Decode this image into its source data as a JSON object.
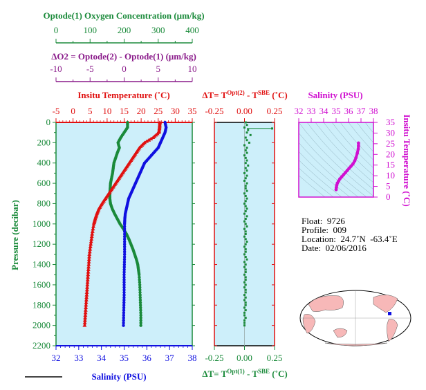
{
  "colors": {
    "oxygen": "#1a8a3a",
    "delta_o2": "#8a1a8a",
    "temperature": "#e01010",
    "salinity": "#1010e0",
    "pressure": "#1a8a3a",
    "delta_t": "#e01010",
    "panel_bg": "#cdeffa",
    "magenta": "#d010d0"
  },
  "chart_data": [
    {
      "type": "line",
      "panel": "main-profile",
      "y_axis": {
        "label": "Pressure (decibar)",
        "range": [
          0,
          2200
        ],
        "ticks": [
          0,
          200,
          400,
          600,
          800,
          1000,
          1200,
          1400,
          1600,
          1800,
          2000,
          2200
        ],
        "inverted": true
      },
      "x_axes": [
        {
          "label": "Optode(1) Oxygen Concentration (μm/kg)",
          "range": [
            0,
            400
          ],
          "ticks": [
            0,
            100,
            200,
            300,
            400
          ]
        },
        {
          "label": "ΔO2 = Optode(2) - Optode(1)   (μm/kg)",
          "range": [
            -10,
            10
          ],
          "ticks": [
            -10,
            -5,
            0,
            5,
            10
          ]
        },
        {
          "label": "Insitu Temperature (˚C)",
          "range": [
            -5,
            35
          ],
          "ticks": [
            -5,
            0,
            5,
            10,
            15,
            20,
            25,
            30,
            35
          ]
        },
        {
          "label": "Salinity (PSU)",
          "range": [
            32,
            38
          ],
          "ticks": [
            32,
            33,
            34,
            35,
            36,
            37,
            38
          ]
        }
      ],
      "series": [
        {
          "variable": "oxygen",
          "pressure": [
            0,
            50,
            100,
            150,
            200,
            250,
            300,
            350,
            400,
            450,
            500,
            550,
            600,
            650,
            700,
            750,
            800,
            850,
            900,
            950,
            1000,
            1050,
            1100,
            1150,
            1200,
            1250,
            1300,
            1350,
            1400,
            1450,
            1500,
            1600,
            1700,
            1800,
            1900,
            2000
          ],
          "values": [
            210,
            210,
            200,
            190,
            182,
            186,
            180,
            175,
            170,
            168,
            166,
            163,
            160,
            159,
            158,
            158,
            160,
            165,
            172,
            180,
            188,
            198,
            207,
            214,
            220,
            226,
            231,
            236,
            240,
            242,
            244,
            246,
            247,
            248,
            249,
            249
          ]
        },
        {
          "variable": "temperature",
          "pressure": [
            0,
            50,
            100,
            150,
            200,
            250,
            300,
            350,
            400,
            450,
            500,
            550,
            600,
            650,
            700,
            750,
            800,
            850,
            900,
            950,
            1000,
            1100,
            1200,
            1300,
            1400,
            1500,
            1600,
            1700,
            1800,
            1900,
            2000
          ],
          "values": [
            25.5,
            25.4,
            25.2,
            23.5,
            21.0,
            19.5,
            18.5,
            17.5,
            16.5,
            15.5,
            14.5,
            13.5,
            12.5,
            11.5,
            10.5,
            9.5,
            8.5,
            7.6,
            7.0,
            6.5,
            6.1,
            5.6,
            5.2,
            4.8,
            4.6,
            4.4,
            4.2,
            4.0,
            3.8,
            3.6,
            3.4
          ]
        },
        {
          "variable": "salinity",
          "pressure": [
            0,
            50,
            100,
            150,
            200,
            250,
            300,
            350,
            400,
            450,
            500,
            550,
            600,
            650,
            700,
            750,
            800,
            850,
            900,
            950,
            1000,
            1100,
            1200,
            1300,
            1400,
            1500,
            1600,
            1700,
            1800,
            1900,
            2000
          ],
          "values": [
            36.8,
            36.85,
            36.8,
            36.7,
            36.6,
            36.5,
            36.3,
            36.1,
            35.9,
            35.8,
            35.7,
            35.6,
            35.5,
            35.4,
            35.3,
            35.2,
            35.15,
            35.1,
            35.05,
            35.03,
            35.02,
            35.02,
            35.02,
            35.02,
            35.01,
            35.0,
            35.0,
            35.0,
            34.99,
            34.98,
            34.97
          ]
        }
      ]
    },
    {
      "type": "scatter",
      "panel": "delta-t",
      "y_axis": {
        "label": "Pressure (decibar)",
        "range": [
          0,
          2200
        ],
        "inverted": true
      },
      "x_axis_top": {
        "label_parts": [
          "ΔT= T",
          "Opt(2)",
          " - T",
          "SBE",
          " (˚C)"
        ],
        "range": [
          -0.25,
          0.25
        ],
        "ticks": [
          -0.25,
          0.0,
          0.25
        ],
        "tick_labels": [
          "-0.25",
          "0.00",
          "0.25"
        ]
      },
      "x_axis_bottom": {
        "label_parts": [
          "ΔT= T",
          "Opt(1)",
          " - T",
          "SBE",
          " (˚C)"
        ],
        "range": [
          -0.25,
          0.25
        ],
        "ticks": [
          -0.25,
          0.0,
          0.25
        ],
        "tick_labels": [
          "-0.25",
          "0.00",
          "0.25"
        ]
      },
      "pressure": [
        0,
        25,
        50,
        75,
        100,
        125,
        150,
        175,
        200,
        225,
        250,
        275,
        300,
        325,
        350,
        375,
        400,
        425,
        450,
        475,
        500,
        525,
        550,
        575,
        600,
        625,
        650,
        675,
        700,
        725,
        750,
        775,
        800,
        825,
        850,
        875,
        900,
        925,
        950,
        975,
        1000,
        1025,
        1050,
        1075,
        1100,
        1125,
        1150,
        1175,
        1200,
        1225,
        1250,
        1275,
        1300,
        1325,
        1350,
        1375,
        1400,
        1425,
        1450,
        1475,
        1500,
        1525,
        1550,
        1575,
        1600,
        1625,
        1650,
        1675,
        1700,
        1725,
        1750,
        1775,
        1800,
        1825,
        1850,
        1875,
        1900,
        1925,
        1950,
        1975,
        2000
      ],
      "values": [
        0.01,
        0.02,
        0.0,
        0.03,
        0.02,
        0.05,
        0.01,
        0.02,
        0.04,
        0.0,
        0.02,
        0.01,
        0.02,
        0.0,
        0.01,
        0.02,
        0.01,
        0.03,
        0.01,
        0.02,
        0.0,
        0.02,
        0.01,
        0.0,
        0.02,
        0.01,
        0.01,
        0.02,
        0.0,
        0.01,
        0.02,
        0.01,
        0.0,
        0.01,
        0.02,
        0.01,
        0.0,
        0.02,
        0.01,
        0.0,
        0.01,
        0.02,
        0.0,
        0.01,
        0.01,
        0.0,
        0.01,
        0.02,
        0.01,
        0.0,
        0.01,
        0.01,
        0.0,
        0.01,
        0.02,
        0.0,
        0.01,
        0.0,
        0.01,
        0.01,
        0.0,
        0.01,
        0.01,
        0.0,
        0.01,
        0.0,
        0.01,
        0.01,
        0.0,
        0.01,
        0.0,
        0.01,
        0.01,
        0.0,
        0.01,
        0.0,
        0.0,
        0.01,
        0.0,
        0.0,
        0.0
      ],
      "outlier": {
        "pressure": 60,
        "value": 0.23
      }
    },
    {
      "type": "scatter",
      "panel": "ts-diagram",
      "x_axis": {
        "label": "Salinity (PSU)",
        "range": [
          32,
          38
        ],
        "ticks": [
          32,
          33,
          34,
          35,
          36,
          37,
          38
        ]
      },
      "y_axis": {
        "label": "Insitu Temperature (˚C)",
        "range": [
          0,
          35
        ],
        "ticks": [
          0,
          5,
          10,
          15,
          20,
          25,
          30,
          35
        ]
      },
      "salinity": [
        35.0,
        35.02,
        35.05,
        35.1,
        35.2,
        35.3,
        35.45,
        35.6,
        35.75,
        35.9,
        36.05,
        36.2,
        36.35,
        36.5,
        36.6,
        36.7,
        36.78,
        36.8,
        36.8
      ],
      "temperature": [
        3.5,
        4.5,
        5.5,
        6.5,
        7.5,
        8.5,
        9.5,
        10.5,
        11.5,
        12.5,
        13.5,
        14.5,
        15.5,
        17.0,
        18.5,
        20.5,
        22.5,
        24.0,
        25.3
      ]
    }
  ],
  "info": {
    "float_label": "Float:",
    "float_value": "9726",
    "profile_label": "Profile:",
    "profile_value": "009",
    "location_label": "Location:",
    "location_value": "24.7˚N  -63.4˚E",
    "date_label": "Date:",
    "date_value": "02/06/2016"
  },
  "map": {
    "marker_lon": -63.4,
    "marker_lat": 24.7,
    "ocean_color": "#ffffff",
    "land_color": "#f7b8b8"
  }
}
